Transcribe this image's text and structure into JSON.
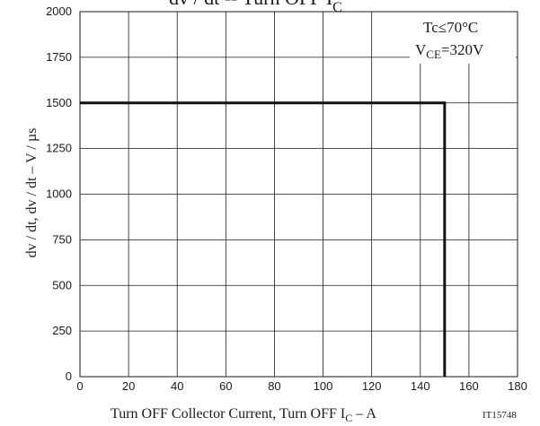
{
  "chart_data": {
    "type": "line",
    "title": "dv / dt -- Turn OFF I",
    "title_sub": "C",
    "xlabel_pre": "Turn OFF Collector Current, Turn OFF I",
    "xlabel_sub": "C",
    "xlabel_post": " – A",
    "ylabel": "dv / dt, dv / dt  –  V / µs",
    "code": "IT15748",
    "annotation": {
      "line1": "Tc≤70°C",
      "line2_pre": "V",
      "line2_sub": "CE",
      "line2_post": "=320V"
    },
    "xlim": [
      0,
      180
    ],
    "ylim": [
      0,
      2000
    ],
    "xticks": [
      0,
      20,
      40,
      60,
      80,
      100,
      120,
      140,
      160,
      180
    ],
    "yticks": [
      0,
      250,
      500,
      750,
      1000,
      1250,
      1500,
      1750,
      2000
    ],
    "grid": true,
    "series": [
      {
        "x": [
          0,
          150,
          150
        ],
        "y": [
          1500,
          1500,
          0
        ]
      }
    ]
  }
}
